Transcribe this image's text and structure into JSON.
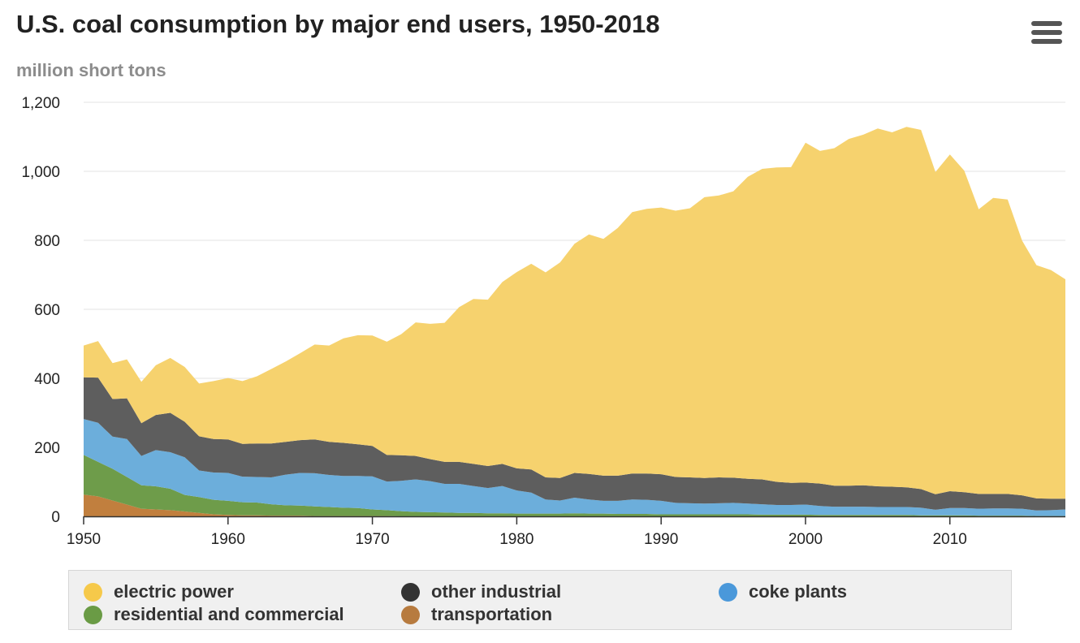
{
  "header": {
    "title": "U.S. coal consumption by major end users, 1950-2018",
    "subtitle": "million short tons",
    "menu_icon": "hamburger-menu-icon"
  },
  "chart_data": {
    "type": "area",
    "stacked": true,
    "title": "U.S. coal consumption by major end users, 1950-2018",
    "ylabel": "million short tons",
    "xlim": [
      1950,
      2018
    ],
    "ylim": [
      0,
      1200
    ],
    "xticks": [
      1950,
      1960,
      1970,
      1980,
      1990,
      2000,
      2010
    ],
    "yticks": [
      0,
      200,
      400,
      600,
      800,
      1000,
      1200
    ],
    "ytick_labels": [
      "0",
      "200",
      "400",
      "600",
      "800",
      "1,000",
      "1,200"
    ],
    "grid": "horizontal",
    "legend_position": "bottom",
    "x": [
      1950,
      1951,
      1952,
      1953,
      1954,
      1955,
      1956,
      1957,
      1958,
      1959,
      1960,
      1961,
      1962,
      1963,
      1964,
      1965,
      1966,
      1967,
      1968,
      1969,
      1970,
      1971,
      1972,
      1973,
      1974,
      1975,
      1976,
      1977,
      1978,
      1979,
      1980,
      1981,
      1982,
      1983,
      1984,
      1985,
      1986,
      1987,
      1988,
      1989,
      1990,
      1991,
      1992,
      1993,
      1994,
      1995,
      1996,
      1997,
      1998,
      1999,
      2000,
      2001,
      2002,
      2003,
      2004,
      2005,
      2006,
      2007,
      2008,
      2009,
      2010,
      2011,
      2012,
      2013,
      2014,
      2015,
      2016,
      2017,
      2018
    ],
    "series": [
      {
        "name": "transportation",
        "color": "#c17f3e",
        "values": [
          63,
          58,
          46,
          34,
          22,
          20,
          18,
          14,
          10,
          6,
          4,
          3,
          3,
          2,
          2,
          2,
          1,
          1,
          1,
          1,
          1,
          1,
          0,
          0,
          0,
          0,
          0,
          0,
          0,
          0,
          0,
          0,
          0,
          0,
          0,
          0,
          0,
          0,
          0,
          0,
          0,
          0,
          0,
          0,
          0,
          0,
          0,
          0,
          0,
          0,
          0,
          0,
          0,
          0,
          0,
          0,
          0,
          0,
          0,
          0,
          0,
          0,
          0,
          0,
          0,
          0,
          0,
          0,
          0
        ]
      },
      {
        "name": "residential and commercial",
        "color": "#6e9c4a",
        "values": [
          115,
          100,
          92,
          80,
          68,
          67,
          62,
          48,
          46,
          42,
          41,
          38,
          37,
          33,
          30,
          29,
          28,
          26,
          24,
          23,
          19,
          17,
          15,
          13,
          12,
          11,
          10,
          10,
          9,
          9,
          8,
          8,
          8,
          8,
          9,
          8,
          8,
          7,
          7,
          7,
          6,
          6,
          6,
          6,
          6,
          6,
          6,
          5,
          5,
          5,
          5,
          4,
          4,
          4,
          4,
          4,
          4,
          4,
          3,
          3,
          3,
          3,
          2,
          2,
          2,
          2,
          1,
          1,
          1
        ]
      },
      {
        "name": "coke plants",
        "color": "#6caedb",
        "values": [
          104,
          113,
          93,
          110,
          85,
          105,
          106,
          109,
          77,
          79,
          81,
          74,
          74,
          78,
          89,
          95,
          96,
          93,
          92,
          93,
          96,
          83,
          88,
          94,
          90,
          83,
          84,
          78,
          73,
          79,
          67,
          61,
          41,
          38,
          45,
          41,
          37,
          38,
          42,
          41,
          39,
          33,
          32,
          31,
          32,
          33,
          31,
          30,
          28,
          28,
          29,
          26,
          24,
          24,
          24,
          23,
          23,
          23,
          22,
          16,
          21,
          21,
          20,
          21,
          21,
          20,
          16,
          17,
          19
        ]
      },
      {
        "name": "other industrial",
        "color": "#5e5e5e",
        "values": [
          121,
          131,
          109,
          118,
          95,
          102,
          114,
          103,
          99,
          97,
          97,
          95,
          97,
          98,
          95,
          95,
          98,
          96,
          96,
          92,
          88,
          77,
          74,
          68,
          64,
          64,
          64,
          64,
          64,
          64,
          64,
          67,
          64,
          65,
          72,
          74,
          73,
          73,
          75,
          76,
          77,
          75,
          75,
          74,
          75,
          73,
          72,
          72,
          67,
          64,
          64,
          65,
          61,
          61,
          62,
          60,
          59,
          57,
          54,
          45,
          49,
          46,
          43,
          42,
          42,
          39,
          35,
          33,
          31
        ]
      },
      {
        "name": "electric power",
        "color": "#f6d26e",
        "values": [
          92,
          106,
          104,
          113,
          120,
          144,
          159,
          159,
          153,
          168,
          178,
          182,
          195,
          216,
          233,
          252,
          275,
          279,
          303,
          316,
          320,
          328,
          351,
          387,
          392,
          403,
          448,
          478,
          482,
          527,
          569,
          596,
          594,
          625,
          664,
          694,
          686,
          718,
          758,
          767,
          773,
          772,
          780,
          814,
          817,
          830,
          875,
          900,
          911,
          915,
          985,
          964,
          978,
          1005,
          1016,
          1037,
          1027,
          1045,
          1041,
          934,
          976,
          932,
          825,
          858,
          853,
          738,
          676,
          663,
          636
        ]
      }
    ]
  },
  "legend": [
    {
      "label": "electric power",
      "color": "#f6c94a"
    },
    {
      "label": "other industrial",
      "color": "#333333"
    },
    {
      "label": "coke plants",
      "color": "#4a98da"
    },
    {
      "label": "residential and commercial",
      "color": "#6a9b45"
    },
    {
      "label": "transportation",
      "color": "#b77b3f"
    }
  ]
}
